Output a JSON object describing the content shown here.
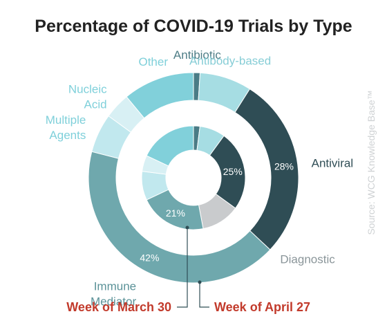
{
  "chart_data": {
    "type": "pie",
    "title": "Percentage of COVID-19 Trials by Type",
    "source": "Source: WCG Knowledge Base™",
    "categories": [
      "Antibiotic",
      "Antibody-based",
      "Antiviral",
      "Diagnostic",
      "Immune Mediator",
      "Multiple Agents",
      "Nucleic Acid",
      "Other"
    ],
    "category_labels": {
      "Antibiotic": [
        "Antibiotic"
      ],
      "Antibody-based": [
        "Antibody-based"
      ],
      "Antiviral": [
        "Antiviral"
      ],
      "Diagnostic": [
        "Diagnostic"
      ],
      "Immune Mediator": [
        "Immune",
        "Mediator"
      ],
      "Multiple Agents": [
        "Multiple",
        "Agents"
      ],
      "Nucleic Acid": [
        "Nucleic",
        "Acid"
      ],
      "Other": [
        "Other"
      ]
    },
    "colors": {
      "Antibiotic": "#4a7c86",
      "Antibody-based": "#a6dde3",
      "Antiviral": "#2f4d55",
      "Diagnostic": "#c9cbcd",
      "Immune Mediator": "#6fa8ad",
      "Multiple Agents": "#c1e8ee",
      "Nucleic Acid": "#d8f0f4",
      "Other": "#81d0da"
    },
    "label_colors": {
      "Antibiotic": "#4e7d86",
      "Antibody-based": "#86cdd6",
      "Antiviral": "#2f4d55",
      "Diagnostic": "#8a9599",
      "Immune Mediator": "#5b9298",
      "Multiple Agents": "#7fd0da",
      "Nucleic Acid": "#7fd0da",
      "Other": "#7fd0da"
    },
    "series": [
      {
        "name": "Week of April 27",
        "ring": "outer",
        "values": [
          1,
          8,
          28,
          0,
          42,
          6,
          4,
          11
        ],
        "labels": [
          "",
          "",
          "28%",
          "",
          "42%",
          "",
          "",
          ""
        ]
      },
      {
        "name": "Week of March 30",
        "ring": "inner",
        "values": [
          2,
          8,
          25,
          12,
          21,
          9,
          5,
          18
        ],
        "labels": [
          "",
          "",
          "25%",
          "",
          "21%",
          "",
          "",
          ""
        ]
      }
    ],
    "legend_position": "bottom"
  }
}
